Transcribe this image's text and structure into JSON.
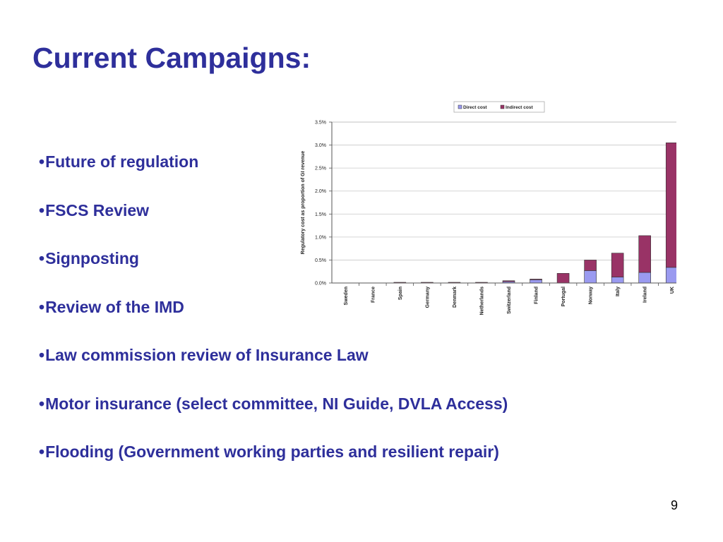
{
  "slide": {
    "title": "Current Campaigns:",
    "bullets": [
      {
        "marker": "•",
        "text": "Future of regulation"
      },
      {
        "marker": "•",
        "text": "FSCS Review"
      },
      {
        "marker": "•",
        "text": "Signposting"
      },
      {
        "marker": "•",
        "text": "Review of the IMD"
      },
      {
        "marker": "•",
        "text": "Law commission review of Insurance Law"
      },
      {
        "marker": "•",
        "text": "Motor insurance (select committee, NI Guide, DVLA Access)"
      },
      {
        "marker": "•",
        "text": "Flooding (Government working parties and resilient repair)"
      }
    ],
    "page_number": "9"
  },
  "colors": {
    "title": "#2e2f9b",
    "direct": "#9a9af0",
    "indirect": "#993366"
  },
  "chart_data": {
    "type": "bar",
    "stacked": true,
    "categories": [
      "Sweden",
      "France",
      "Spain",
      "Germany",
      "Denmark",
      "Netherlands",
      "Switzerland",
      "Finland",
      "Portugal",
      "Norway",
      "Italy",
      "Ireland",
      "UK"
    ],
    "series": [
      {
        "name": "Direct cost",
        "color": "#9a9af0",
        "values": [
          0.0,
          0.0,
          0.0,
          0.0,
          0.0,
          0.0,
          0.03,
          0.07,
          0.0,
          0.27,
          0.13,
          0.23,
          0.34
        ]
      },
      {
        "name": "Indirect cost",
        "color": "#993366",
        "values": [
          0.0,
          0.0,
          0.005,
          0.005,
          0.015,
          0.015,
          0.02,
          0.01,
          0.21,
          0.23,
          0.52,
          0.8,
          2.71
        ]
      }
    ],
    "title": "",
    "xlabel": "",
    "ylabel": "Regulatory cost as proportion of GI revenue",
    "ylim": [
      0,
      3.5
    ],
    "yticks": [
      0,
      0.5,
      1.0,
      1.5,
      2.0,
      2.5,
      3.0,
      3.5
    ],
    "ytick_labels": [
      "0.0%",
      "0.5%",
      "1.0%",
      "1.5%",
      "2.0%",
      "2.5%",
      "3.0%",
      "3.5%"
    ],
    "grid": true,
    "legend": "top"
  }
}
